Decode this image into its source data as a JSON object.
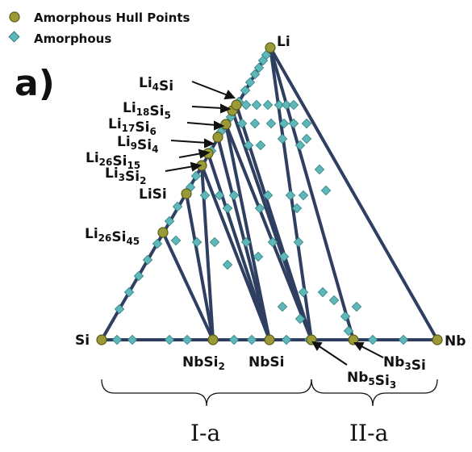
{
  "panel_label": "a)",
  "legend": {
    "items": [
      {
        "label": "Amorphous Hull Points",
        "marker": "circle",
        "color": "#9a9a36"
      },
      {
        "label": "Amorphous",
        "marker": "diamond",
        "color": "#5fb7b9"
      }
    ]
  },
  "vertices": {
    "top": "Li",
    "left": "Si",
    "right": "Nb"
  },
  "compounds": [
    {
      "id": "Li4Si",
      "base": "Li",
      "sub1": "4",
      "el2": "Si",
      "sub2": ""
    },
    {
      "id": "Li18Si5",
      "base": "Li",
      "sub1": "18",
      "el2": "Si",
      "sub2": "5"
    },
    {
      "id": "Li17Si6",
      "base": "Li",
      "sub1": "17",
      "el2": "Si",
      "sub2": "6"
    },
    {
      "id": "Li9Si4",
      "base": "Li",
      "sub1": "9",
      "el2": "Si",
      "sub2": "4"
    },
    {
      "id": "Li26Si15",
      "base": "Li",
      "sub1": "26",
      "el2": "Si",
      "sub2": "15"
    },
    {
      "id": "Li3Si2",
      "base": "Li",
      "sub1": "3",
      "el2": "Si",
      "sub2": "2"
    },
    {
      "id": "LiSi",
      "base": "LiSi",
      "sub1": "",
      "el2": "",
      "sub2": ""
    },
    {
      "id": "Li26Si45",
      "base": "Li",
      "sub1": "26",
      "el2": "Si",
      "sub2": "45"
    },
    {
      "id": "NbSi2",
      "base": "NbSi",
      "sub1": "2",
      "el2": "",
      "sub2": ""
    },
    {
      "id": "NbSi",
      "base": "NbSi",
      "sub1": "",
      "el2": "",
      "sub2": ""
    },
    {
      "id": "Nb5Si3",
      "base": "Nb",
      "sub1": "5",
      "el2": "Si",
      "sub2": "3"
    },
    {
      "id": "Nb3Si",
      "base": "Nb",
      "sub1": "3",
      "el2": "Si",
      "sub2": ""
    }
  ],
  "regions": [
    {
      "label": "I-a"
    },
    {
      "label": "II-a"
    }
  ],
  "colors": {
    "line": "#2e3f61",
    "hull": "#9a9a36",
    "hull_stroke": "#5a5a1a",
    "amorphous": "#5fb7b9",
    "amorphous_stroke": "#2f7f81"
  }
}
